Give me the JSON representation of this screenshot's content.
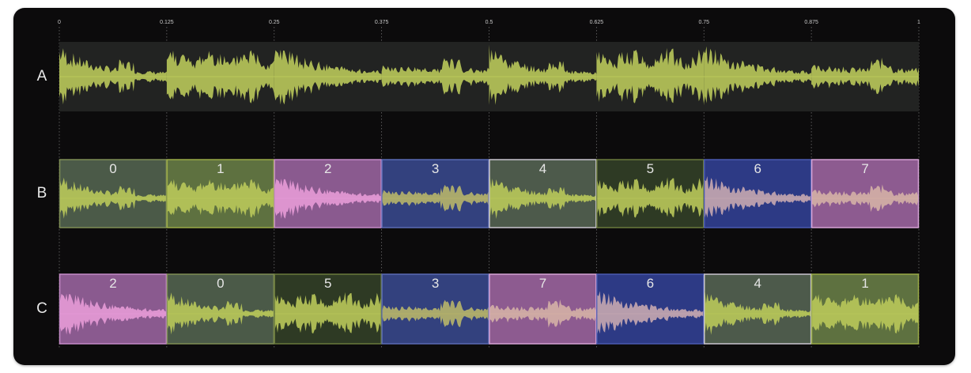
{
  "ticks": [
    "0",
    "0.125",
    "0.25",
    "0.375",
    "0.5",
    "0.625",
    "0.75",
    "0.875",
    "1"
  ],
  "rows": [
    {
      "label": "A",
      "segments": []
    },
    {
      "label": "B",
      "segments": [
        {
          "label": "0",
          "source": 0
        },
        {
          "label": "1",
          "source": 1
        },
        {
          "label": "2",
          "source": 2
        },
        {
          "label": "3",
          "source": 3
        },
        {
          "label": "4",
          "source": 4
        },
        {
          "label": "5",
          "source": 5
        },
        {
          "label": "6",
          "source": 6
        },
        {
          "label": "7",
          "source": 7
        }
      ]
    },
    {
      "label": "C",
      "segments": [
        {
          "label": "2",
          "source": 2
        },
        {
          "label": "0",
          "source": 0
        },
        {
          "label": "5",
          "source": 5
        },
        {
          "label": "3",
          "source": 3
        },
        {
          "label": "7",
          "source": 7
        },
        {
          "label": "6",
          "source": 6
        },
        {
          "label": "4",
          "source": 4
        },
        {
          "label": "1",
          "source": 1
        }
      ]
    }
  ],
  "segment_styles": [
    {
      "fill": "#4b5a48",
      "border": "#7f8e55",
      "wave": "#b9c85a"
    },
    {
      "fill": "#5e7140",
      "border": "#9aab46",
      "wave": "#b9c85a"
    },
    {
      "fill": "#8a5a8f",
      "border": "#c58bc8",
      "wave": "#e59ad6"
    },
    {
      "fill": "#33417e",
      "border": "#5b6bb4",
      "wave": "#b7b56a"
    },
    {
      "fill": "#4d5a4b",
      "border": "#c9c5cf",
      "wave": "#b9c85a"
    },
    {
      "fill": "#2e3a24",
      "border": "#6a7a3c",
      "wave": "#b9c85a"
    },
    {
      "fill": "#2d3a85",
      "border": "#4b5bb0",
      "wave": "#c6a9b0"
    },
    {
      "fill": "#8d5b90",
      "border": "#d6a3d6",
      "wave": "#d4b0a6"
    }
  ],
  "colors": {
    "panel": "#0c0b0c",
    "track_a_bg": "#222322",
    "wave_a": "#b9c85a",
    "grid": "#6b6b6b",
    "text": "#e6e6e6"
  }
}
